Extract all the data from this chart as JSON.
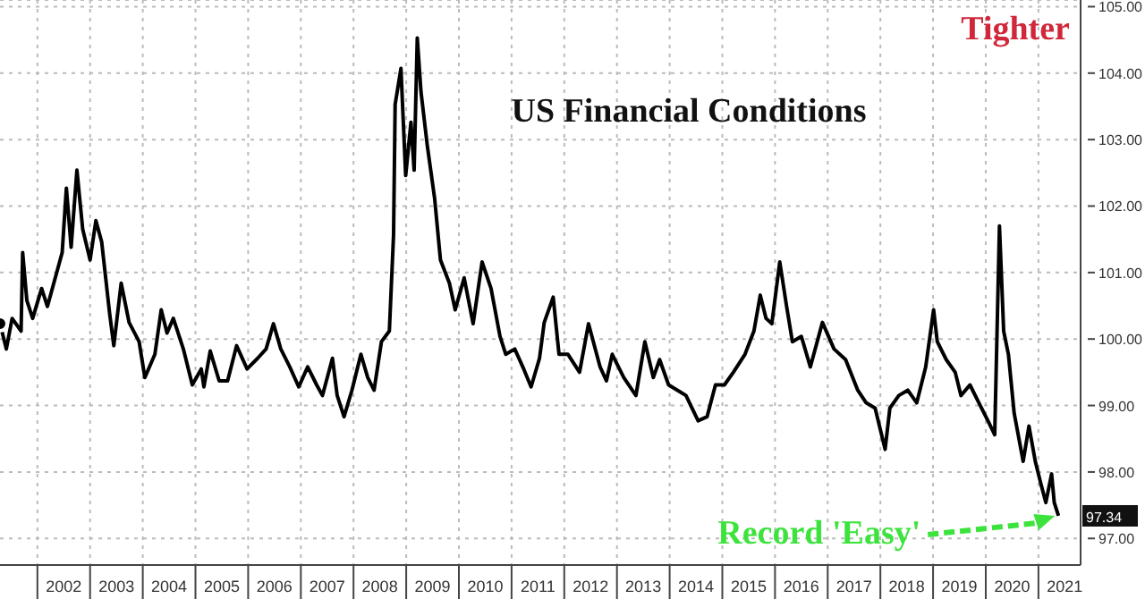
{
  "chart_data": {
    "type": "line",
    "title": "US Financial Conditions",
    "x": [
      2001.29,
      2001.41,
      2001.52,
      2001.69,
      2001.72,
      2001.8,
      2001.91,
      2002.08,
      2002.19,
      2002.36,
      2002.47,
      2002.55,
      2002.64,
      2002.75,
      2002.86,
      2003.0,
      2003.11,
      2003.22,
      2003.37,
      2003.45,
      2003.59,
      2003.74,
      2003.93,
      2004.04,
      2004.23,
      2004.35,
      2004.46,
      2004.58,
      2004.77,
      2004.94,
      2005.11,
      2005.16,
      2005.28,
      2005.45,
      2005.61,
      2005.78,
      2005.98,
      2006.18,
      2006.34,
      2006.48,
      2006.62,
      2006.79,
      2006.96,
      2007.13,
      2007.3,
      2007.41,
      2007.6,
      2007.69,
      2007.82,
      2007.97,
      2008.14,
      2008.27,
      2008.39,
      2008.53,
      2008.68,
      2008.76,
      2008.79,
      2008.9,
      2008.99,
      2009.09,
      2009.15,
      2009.21,
      2009.28,
      2009.4,
      2009.54,
      2009.65,
      2009.82,
      2009.93,
      2010.1,
      2010.27,
      2010.44,
      2010.61,
      2010.78,
      2010.89,
      2011.06,
      2011.23,
      2011.37,
      2011.53,
      2011.62,
      2011.79,
      2011.9,
      2012.07,
      2012.29,
      2012.46,
      2012.68,
      2012.8,
      2012.91,
      2013.13,
      2013.36,
      2013.53,
      2013.69,
      2013.81,
      2013.98,
      2014.31,
      2014.54,
      2014.71,
      2014.87,
      2015.04,
      2015.21,
      2015.43,
      2015.6,
      2015.72,
      2015.83,
      2015.94,
      2016.09,
      2016.22,
      2016.33,
      2016.5,
      2016.67,
      2016.9,
      2017.12,
      2017.34,
      2017.57,
      2017.73,
      2017.9,
      2018.09,
      2018.18,
      2018.35,
      2018.52,
      2018.69,
      2018.86,
      2019.01,
      2019.08,
      2019.25,
      2019.42,
      2019.53,
      2019.7,
      2019.87,
      2020.06,
      2020.17,
      2020.26,
      2020.34,
      2020.43,
      2020.54,
      2020.71,
      2020.82,
      2020.94,
      2021.05,
      2021.14,
      2021.25,
      2021.3,
      2021.38
    ],
    "series": [
      {
        "color": "#000000",
        "values": [
          100.23,
          99.85,
          100.31,
          100.12,
          101.3,
          100.58,
          100.31,
          100.76,
          100.49,
          100.98,
          101.3,
          102.27,
          101.38,
          102.54,
          101.65,
          101.19,
          101.78,
          101.46,
          100.39,
          99.9,
          100.84,
          100.25,
          99.96,
          99.42,
          99.77,
          100.44,
          100.09,
          100.31,
          99.85,
          99.31,
          99.55,
          99.28,
          99.82,
          99.37,
          99.37,
          99.9,
          99.55,
          99.71,
          99.85,
          100.23,
          99.85,
          99.58,
          99.28,
          99.58,
          99.31,
          99.15,
          99.71,
          99.15,
          98.83,
          99.23,
          99.77,
          99.42,
          99.23,
          99.96,
          100.12,
          101.57,
          103.53,
          104.07,
          102.46,
          103.26,
          102.54,
          104.53,
          103.72,
          102.91,
          102.11,
          101.19,
          100.84,
          100.44,
          100.92,
          100.23,
          101.16,
          100.76,
          100.04,
          99.77,
          99.85,
          99.55,
          99.28,
          99.71,
          100.25,
          100.63,
          99.77,
          99.77,
          99.5,
          100.23,
          99.58,
          99.37,
          99.77,
          99.42,
          99.15,
          99.96,
          99.42,
          99.69,
          99.31,
          99.15,
          98.77,
          98.83,
          99.31,
          99.31,
          99.5,
          99.77,
          100.12,
          100.66,
          100.31,
          100.23,
          101.16,
          100.49,
          99.96,
          100.04,
          99.58,
          100.25,
          99.85,
          99.69,
          99.23,
          99.04,
          98.96,
          98.34,
          98.96,
          99.15,
          99.23,
          99.04,
          99.58,
          100.44,
          99.96,
          99.69,
          99.5,
          99.15,
          99.31,
          99.04,
          98.74,
          98.56,
          101.7,
          100.12,
          99.77,
          98.88,
          98.16,
          98.69,
          98.16,
          97.81,
          97.54,
          97.97,
          97.54,
          97.34
        ]
      }
    ],
    "xlim": [
      2001.29,
      2021.8
    ],
    "xticks": [
      {
        "value": 2002,
        "label": null
      },
      {
        "value": 2002.5,
        "label": "2002"
      },
      {
        "value": 2003,
        "label": null
      },
      {
        "value": 2003.5,
        "label": "2003"
      },
      {
        "value": 2004,
        "label": null
      },
      {
        "value": 2004.5,
        "label": "2004"
      },
      {
        "value": 2005,
        "label": null
      },
      {
        "value": 2005.5,
        "label": "2005"
      },
      {
        "value": 2006,
        "label": null
      },
      {
        "value": 2006.5,
        "label": "2006"
      },
      {
        "value": 2007,
        "label": null
      },
      {
        "value": 2007.5,
        "label": "2007"
      },
      {
        "value": 2008,
        "label": null
      },
      {
        "value": 2008.5,
        "label": "2008"
      },
      {
        "value": 2009,
        "label": null
      },
      {
        "value": 2009.5,
        "label": "2009"
      },
      {
        "value": 2010,
        "label": null
      },
      {
        "value": 2010.5,
        "label": "2010"
      },
      {
        "value": 2011,
        "label": null
      },
      {
        "value": 2011.5,
        "label": "2011"
      },
      {
        "value": 2012,
        "label": null
      },
      {
        "value": 2012.5,
        "label": "2012"
      },
      {
        "value": 2013,
        "label": null
      },
      {
        "value": 2013.5,
        "label": "2013"
      },
      {
        "value": 2014,
        "label": null
      },
      {
        "value": 2014.5,
        "label": "2014"
      },
      {
        "value": 2015,
        "label": null
      },
      {
        "value": 2015.5,
        "label": "2015"
      },
      {
        "value": 2016,
        "label": null
      },
      {
        "value": 2016.5,
        "label": "2016"
      },
      {
        "value": 2017,
        "label": null
      },
      {
        "value": 2017.5,
        "label": "2017"
      },
      {
        "value": 2018,
        "label": null
      },
      {
        "value": 2018.5,
        "label": "2018"
      },
      {
        "value": 2019,
        "label": null
      },
      {
        "value": 2019.5,
        "label": "2019"
      },
      {
        "value": 2020,
        "label": null
      },
      {
        "value": 2020.5,
        "label": "2020"
      },
      {
        "value": 2021,
        "label": null
      },
      {
        "value": 2021.5,
        "label": "2021"
      }
    ],
    "ylim": [
      96.6,
      105.1
    ],
    "yticks": [
      {
        "value": 97,
        "label": "97.00"
      },
      {
        "value": 98,
        "label": "98.00"
      },
      {
        "value": 99,
        "label": "99.00"
      },
      {
        "value": 100,
        "label": "100.00"
      },
      {
        "value": 101,
        "label": "101.00"
      },
      {
        "value": 102,
        "label": "102.00"
      },
      {
        "value": 103,
        "label": "103.00"
      },
      {
        "value": 104,
        "label": "104.00"
      },
      {
        "value": 105,
        "label": "105.00"
      }
    ],
    "grid": true,
    "marker": "none",
    "line_style": "solid",
    "annotations": [
      "Tighter",
      "Record 'Easy'",
      "97.34"
    ]
  }
}
